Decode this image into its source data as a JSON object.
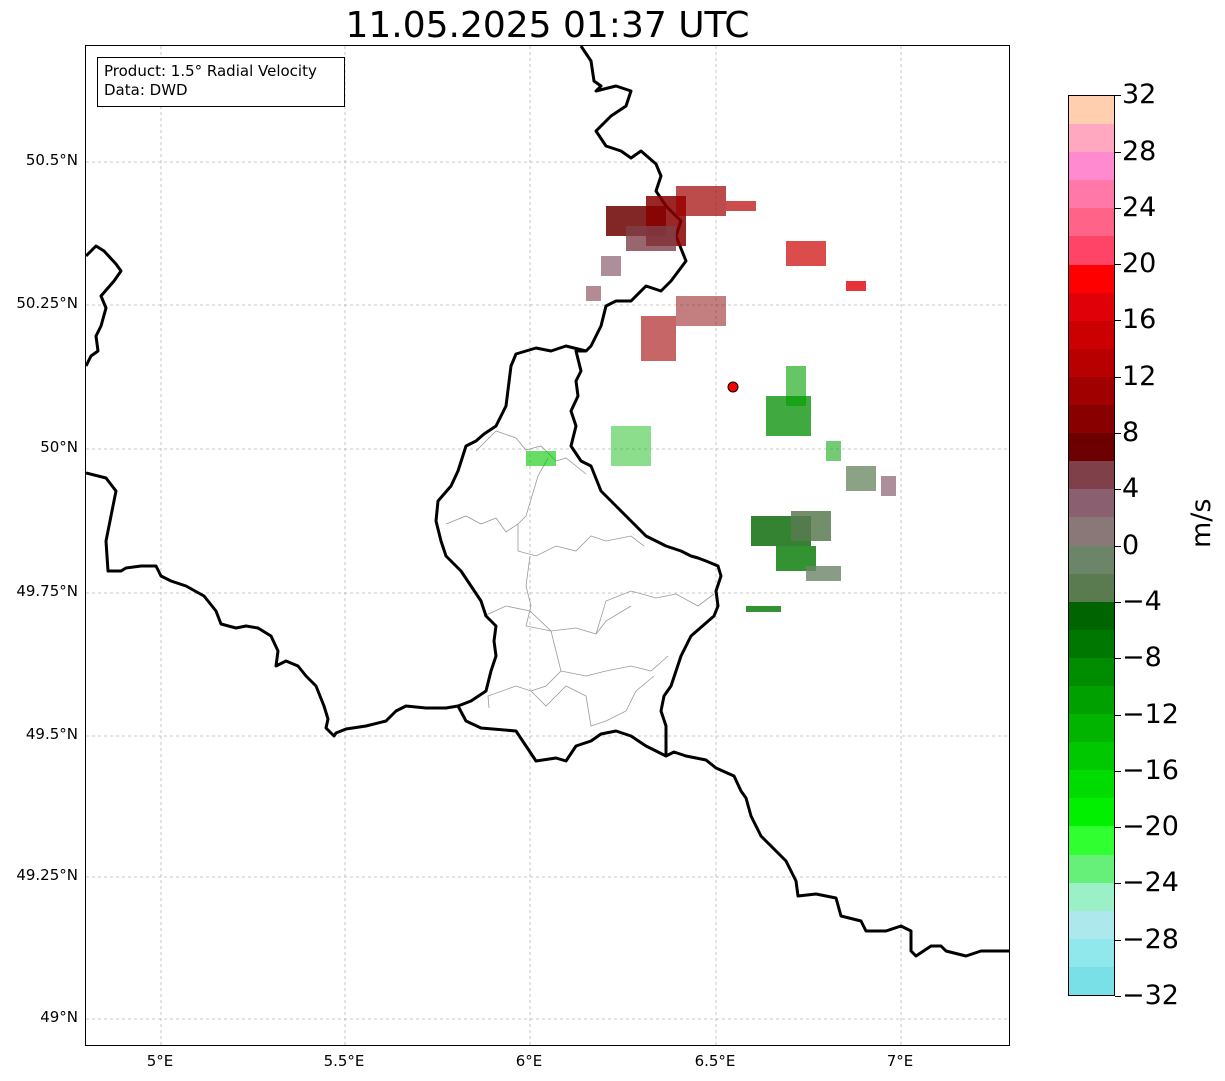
{
  "title": "11.05.2025 01:37 UTC",
  "info": {
    "product": "Product: 1.5° Radial Velocity",
    "source": "Data: DWD"
  },
  "lat_ticks": [
    "50.5°N",
    "50.25°N",
    "50°N",
    "49.75°N",
    "49.5°N",
    "49.25°N",
    "49°N"
  ],
  "lon_ticks": [
    "5°E",
    "5.5°E",
    "6°E",
    "6.5°E",
    "7°E"
  ],
  "colorbar": {
    "label": "m/s",
    "ticks": [
      "32",
      "28",
      "24",
      "20",
      "16",
      "12",
      "8",
      "4",
      "0",
      "−4",
      "−8",
      "−12",
      "−16",
      "−20",
      "−24",
      "−28",
      "−32"
    ],
    "colors": [
      "#ffcfb0",
      "#ffa8c0",
      "#ff8ad0",
      "#ff78a8",
      "#ff6488",
      "#ff4468",
      "#ff0000",
      "#e00008",
      "#cc0000",
      "#b80000",
      "#a00000",
      "#880000",
      "#6c0000",
      "#80404a",
      "#8a6070",
      "#8a7878",
      "#6c8468",
      "#5a7a50",
      "#006400",
      "#007800",
      "#008c00",
      "#00a000",
      "#00b400",
      "#00c800",
      "#00dc00",
      "#00f000",
      "#30ff30",
      "#66f07a",
      "#9cf0c8",
      "#ace8ec",
      "#90e8ec",
      "#78e0e6"
    ]
  },
  "radar_site": {
    "lon": 6.55,
    "lat": 50.11,
    "color": "#ff0000"
  },
  "colors": {
    "border": "#000000",
    "grid": "#b0b0b0",
    "districts": "#999999"
  }
}
